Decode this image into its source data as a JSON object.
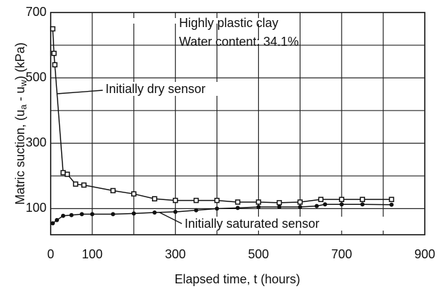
{
  "chart_data": {
    "type": "line",
    "xlabel": "Elapsed time, t (hours)",
    "ylabel": [
      "Matric suction, (u",
      "a",
      " - u",
      "w",
      ") (kPa)"
    ],
    "annotations": [
      "Highly plastic clay",
      "Water content: 34.1%",
      "Initially dry sensor",
      "Initially saturated sensor"
    ],
    "xlim": [
      0,
      900
    ],
    "ylim": [
      20,
      700
    ],
    "xticks": [
      0,
      100,
      300,
      500,
      700,
      900
    ],
    "yticks": [
      100,
      300,
      500,
      700
    ],
    "xgrid": [
      100,
      200,
      300,
      400,
      500,
      600,
      700,
      800
    ],
    "ygrid": [
      100,
      200,
      300,
      400,
      500,
      600
    ],
    "grid": true,
    "series": [
      {
        "marker": "square",
        "color": "#111",
        "x": [
          5,
          8,
          10,
          30,
          40,
          60,
          80,
          150,
          200,
          250,
          300,
          350,
          400,
          450,
          500,
          550,
          600,
          650,
          700,
          750,
          820
        ],
        "values": [
          650,
          575,
          540,
          210,
          205,
          175,
          172,
          155,
          145,
          130,
          125,
          125,
          125,
          120,
          120,
          118,
          120,
          128,
          128,
          128,
          128
        ]
      },
      {
        "marker": "circle",
        "color": "#111",
        "x": [
          5,
          15,
          30,
          50,
          75,
          100,
          150,
          200,
          250,
          300,
          350,
          400,
          450,
          500,
          550,
          600,
          640,
          660,
          700,
          750,
          820
        ],
        "values": [
          55,
          65,
          78,
          80,
          83,
          83,
          83,
          85,
          88,
          90,
          95,
          100,
          102,
          105,
          105,
          105,
          108,
          113,
          113,
          113,
          112
        ]
      }
    ]
  }
}
